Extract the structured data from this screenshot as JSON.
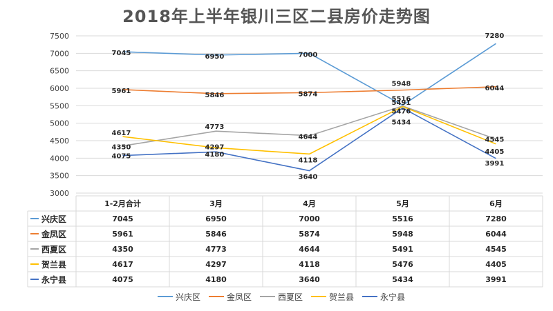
{
  "chart_data": {
    "type": "line",
    "title": "2018年上半年银川三区二县房价走势图",
    "categories": [
      "1-2月合计",
      "3月",
      "4月",
      "5月",
      "6月"
    ],
    "ylim": [
      3000,
      7500
    ],
    "yticks": [
      3000,
      3500,
      4000,
      4500,
      5000,
      5500,
      6000,
      6500,
      7000,
      7500
    ],
    "grid": true,
    "legend_position": "bottom",
    "data_table": true,
    "series": [
      {
        "name": "兴庆区",
        "color": "#5b9bd5",
        "values": [
          7045,
          6950,
          7000,
          5516,
          7280
        ]
      },
      {
        "name": "金凤区",
        "color": "#ed7d31",
        "values": [
          5961,
          5846,
          5874,
          5948,
          6044
        ]
      },
      {
        "name": "西夏区",
        "color": "#a5a5a5",
        "values": [
          4350,
          4773,
          4644,
          5491,
          4545
        ]
      },
      {
        "name": "贺兰县",
        "color": "#ffc000",
        "values": [
          4617,
          4297,
          4118,
          5476,
          4405
        ]
      },
      {
        "name": "永宁县",
        "color": "#4472c4",
        "values": [
          4075,
          4180,
          3640,
          5434,
          3991
        ]
      }
    ]
  }
}
